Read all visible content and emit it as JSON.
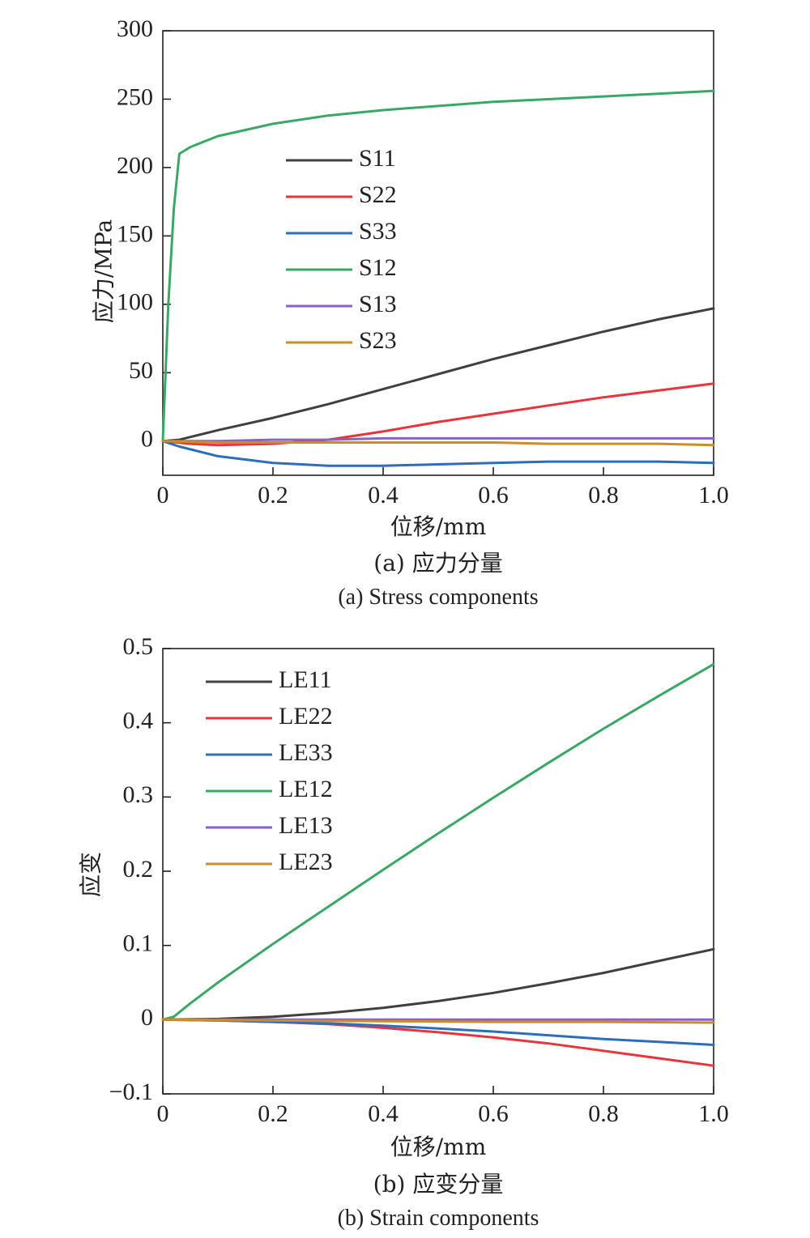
{
  "chart_data": [
    {
      "type": "line",
      "caption_cn": "(a) 应力分量",
      "caption_en": "(a) Stress components",
      "xlabel": "位移/mm",
      "ylabel": "应力/MPa",
      "xlim": [
        0,
        1.0
      ],
      "ylim": [
        -25,
        300
      ],
      "xticks": [
        0,
        0.2,
        0.4,
        0.6,
        0.8,
        1.0
      ],
      "xtick_labels": [
        "0",
        "0.2",
        "0.4",
        "0.6",
        "0.8",
        "1.0"
      ],
      "yticks": [
        0,
        50,
        100,
        150,
        200,
        250,
        300
      ],
      "ytick_labels": [
        "0",
        "50",
        "100",
        "150",
        "200",
        "250",
        "300"
      ],
      "grid": false,
      "legend": "upper-middle",
      "series": [
        {
          "name": "S11",
          "color": "#404040",
          "x": [
            0,
            0.03,
            0.1,
            0.2,
            0.3,
            0.4,
            0.5,
            0.6,
            0.7,
            0.8,
            0.9,
            1.0
          ],
          "y": [
            0,
            1,
            8,
            17,
            27,
            38,
            49,
            60,
            70,
            80,
            89,
            97
          ]
        },
        {
          "name": "S22",
          "color": "#e8343b",
          "x": [
            0,
            0.05,
            0.1,
            0.2,
            0.3,
            0.4,
            0.5,
            0.6,
            0.7,
            0.8,
            0.9,
            1.0
          ],
          "y": [
            0,
            -2,
            -3,
            -2,
            1,
            7,
            14,
            20,
            26,
            32,
            37,
            42
          ]
        },
        {
          "name": "S33",
          "color": "#2d6dbd",
          "x": [
            0,
            0.03,
            0.1,
            0.2,
            0.3,
            0.4,
            0.5,
            0.6,
            0.7,
            0.8,
            0.9,
            1.0
          ],
          "y": [
            0,
            -4,
            -11,
            -16,
            -18,
            -18,
            -17,
            -16,
            -15,
            -15,
            -15,
            -16
          ]
        },
        {
          "name": "S12",
          "color": "#3aa865",
          "x": [
            0,
            0.01,
            0.02,
            0.03,
            0.05,
            0.1,
            0.2,
            0.3,
            0.4,
            0.5,
            0.6,
            0.7,
            0.8,
            0.9,
            1.0
          ],
          "y": [
            0,
            100,
            170,
            210,
            215,
            223,
            232,
            238,
            242,
            245,
            248,
            250,
            252,
            254,
            256
          ]
        },
        {
          "name": "S13",
          "color": "#8b62c4",
          "x": [
            0,
            0.1,
            0.2,
            0.3,
            0.4,
            0.5,
            0.6,
            0.7,
            0.8,
            0.9,
            1.0
          ],
          "y": [
            0,
            0,
            1,
            1,
            2,
            2,
            2,
            2,
            2,
            2,
            2
          ]
        },
        {
          "name": "S23",
          "color": "#c98e2a",
          "x": [
            0,
            0.1,
            0.2,
            0.3,
            0.4,
            0.5,
            0.6,
            0.7,
            0.8,
            0.9,
            1.0
          ],
          "y": [
            0,
            -1,
            -1,
            -1,
            -1,
            -1,
            -1,
            -2,
            -2,
            -2,
            -3
          ]
        }
      ]
    },
    {
      "type": "line",
      "caption_cn": "(b) 应变分量",
      "caption_en": "(b) Strain components",
      "xlabel": "位移/mm",
      "ylabel": "应变",
      "xlim": [
        0,
        1.0
      ],
      "ylim": [
        -0.1,
        0.5
      ],
      "xticks": [
        0,
        0.2,
        0.4,
        0.6,
        0.8,
        1.0
      ],
      "xtick_labels": [
        "0",
        "0.2",
        "0.4",
        "0.6",
        "0.8",
        "1.0"
      ],
      "yticks": [
        -0.1,
        0,
        0.1,
        0.2,
        0.3,
        0.4,
        0.5
      ],
      "ytick_labels": [
        "−0.1",
        "0",
        "0.1",
        "0.2",
        "0.3",
        "0.4",
        "0.5"
      ],
      "grid": false,
      "legend": "upper-left",
      "series": [
        {
          "name": "LE11",
          "color": "#404040",
          "x": [
            0,
            0.1,
            0.2,
            0.3,
            0.4,
            0.5,
            0.6,
            0.7,
            0.8,
            0.9,
            1.0
          ],
          "y": [
            0,
            0.001,
            0.004,
            0.009,
            0.016,
            0.025,
            0.036,
            0.049,
            0.063,
            0.079,
            0.095
          ]
        },
        {
          "name": "LE22",
          "color": "#e8343b",
          "x": [
            0,
            0.1,
            0.2,
            0.3,
            0.4,
            0.5,
            0.6,
            0.7,
            0.8,
            0.9,
            1.0
          ],
          "y": [
            0,
            -0.001,
            -0.003,
            -0.006,
            -0.011,
            -0.017,
            -0.024,
            -0.032,
            -0.042,
            -0.052,
            -0.062
          ]
        },
        {
          "name": "LE33",
          "color": "#2d6dbd",
          "x": [
            0,
            0.1,
            0.2,
            0.3,
            0.4,
            0.5,
            0.6,
            0.7,
            0.8,
            0.9,
            1.0
          ],
          "y": [
            0,
            -0.001,
            -0.003,
            -0.005,
            -0.008,
            -0.012,
            -0.016,
            -0.021,
            -0.026,
            -0.03,
            -0.034
          ]
        },
        {
          "name": "LE12",
          "color": "#3aa865",
          "x": [
            0,
            0.02,
            0.03,
            0.05,
            0.1,
            0.2,
            0.3,
            0.4,
            0.5,
            0.6,
            0.7,
            0.8,
            0.9,
            1.0
          ],
          "y": [
            0,
            0.004,
            0.01,
            0.022,
            0.05,
            0.102,
            0.152,
            0.202,
            0.251,
            0.299,
            0.346,
            0.392,
            0.436,
            0.479
          ]
        },
        {
          "name": "LE13",
          "color": "#8b62c4",
          "x": [
            0,
            0.2,
            0.4,
            0.6,
            0.8,
            1.0
          ],
          "y": [
            0,
            0,
            0,
            0,
            0,
            0
          ]
        },
        {
          "name": "LE23",
          "color": "#c98e2a",
          "x": [
            0,
            0.2,
            0.4,
            0.6,
            0.8,
            1.0
          ],
          "y": [
            0,
            -0.001,
            -0.002,
            -0.003,
            -0.003,
            -0.004
          ]
        }
      ]
    }
  ]
}
